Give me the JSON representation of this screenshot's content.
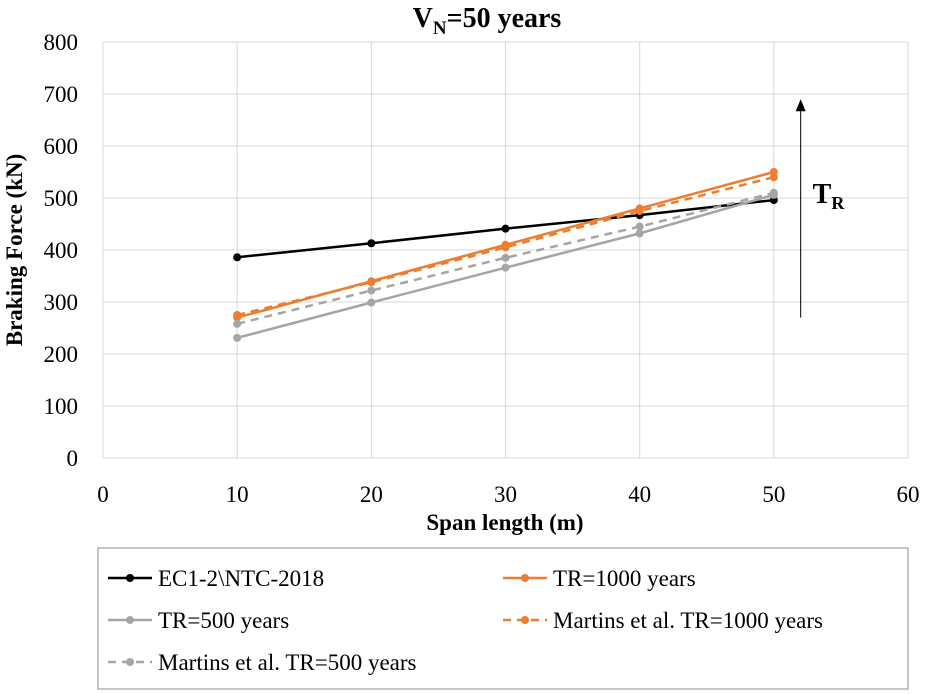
{
  "chart_data": {
    "type": "line",
    "title": "V",
    "title_subscript": "N",
    "title_suffix": "=50 years",
    "xlabel": "Span length (m)",
    "ylabel": "Braking Force (kN)",
    "xlim": [
      0,
      60
    ],
    "ylim": [
      0,
      800
    ],
    "xticks": [
      0,
      10,
      20,
      30,
      40,
      50,
      60
    ],
    "yticks": [
      0,
      100,
      200,
      300,
      400,
      500,
      600,
      700,
      800
    ],
    "grid": true,
    "legend_placement": "bottom",
    "series": [
      {
        "name": "EC1-2\\NTC-2018",
        "color": "#000000",
        "dashed": false,
        "x": [
          10,
          20,
          30,
          40,
          50
        ],
        "values": [
          386,
          413,
          441,
          467,
          496
        ]
      },
      {
        "name": "TR=1000 years",
        "color": "#ED7D31",
        "dashed": false,
        "x": [
          10,
          20,
          30,
          40,
          50
        ],
        "values": [
          270,
          340,
          410,
          480,
          550
        ]
      },
      {
        "name": "TR=500 years",
        "color": "#A5A5A5",
        "dashed": false,
        "x": [
          10,
          20,
          30,
          40,
          50
        ],
        "values": [
          231,
          299,
          366,
          432,
          506
        ]
      },
      {
        "name": "Martins et al. TR=1000 years",
        "color": "#ED7D31",
        "dashed": true,
        "x": [
          10,
          20,
          30,
          40,
          50
        ],
        "values": [
          275,
          338,
          405,
          475,
          540
        ]
      },
      {
        "name": "Martins et al. TR=500 years",
        "color": "#A5A5A5",
        "dashed": true,
        "x": [
          10,
          20,
          30,
          40,
          50
        ],
        "values": [
          258,
          322,
          385,
          445,
          510
        ]
      }
    ],
    "annotation": {
      "text": "T",
      "subscript": "R",
      "arrow_x": 52,
      "arrow_from": 270,
      "arrow_to": 690
    }
  }
}
